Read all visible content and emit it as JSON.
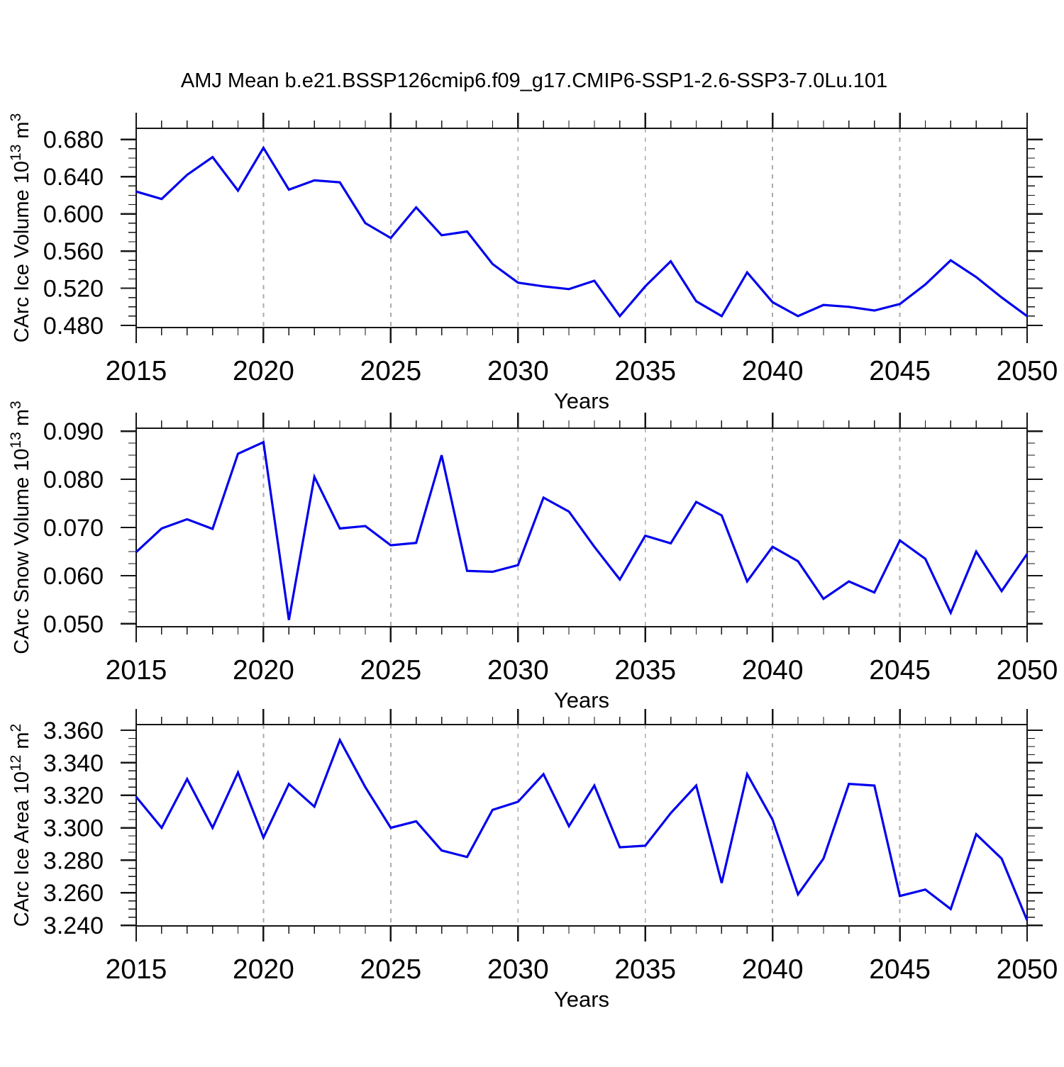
{
  "title": "AMJ Mean b.e21.BSSP126cmip6.f09_g17.CMIP6-SSP1-2.6-SSP3-7.0Lu.101",
  "colors": {
    "line": "#0000ee",
    "gridline": "#ababab",
    "axis": "#161616",
    "text": "#000000",
    "background": "#ffffff"
  },
  "chart_data": {
    "type": "line",
    "x": [
      2015,
      2016,
      2017,
      2018,
      2019,
      2020,
      2021,
      2022,
      2023,
      2024,
      2025,
      2026,
      2027,
      2028,
      2029,
      2030,
      2031,
      2032,
      2033,
      2034,
      2035,
      2036,
      2037,
      2038,
      2039,
      2040,
      2041,
      2042,
      2043,
      2044,
      2045,
      2046,
      2047,
      2048,
      2049,
      2050
    ],
    "xticks": [
      2015,
      2020,
      2025,
      2030,
      2035,
      2040,
      2045,
      2050
    ],
    "xtick_labels": [
      "2015",
      "2020",
      "2025",
      "2030",
      "2035",
      "2040",
      "2045",
      "2050"
    ],
    "xtick_minor_step": 1,
    "grid_x": [
      2020,
      2025,
      2030,
      2035,
      2040,
      2045
    ],
    "grid_style": "dashed-vertical",
    "legend": null,
    "panels": [
      {
        "name": "carc-ice-volume",
        "ylabel": "CArc Ice Volume 10^{13} m^{3}",
        "xlabel": "Years",
        "ylim": [
          0.4777,
          0.692
        ],
        "yticks": [
          0.48,
          0.52,
          0.56,
          0.6,
          0.64,
          0.68
        ],
        "ytick_labels": [
          "0.480",
          "0.520",
          "0.560",
          "0.600",
          "0.640",
          "0.680"
        ],
        "ytick_minor_per_major": 3,
        "values": [
          0.624,
          0.616,
          0.642,
          0.661,
          0.625,
          0.671,
          0.626,
          0.636,
          0.634,
          0.59,
          0.574,
          0.607,
          0.577,
          0.581,
          0.546,
          0.526,
          0.522,
          0.519,
          0.528,
          0.49,
          0.522,
          0.549,
          0.506,
          0.49,
          0.537,
          0.505,
          0.49,
          0.502,
          0.5,
          0.496,
          0.503,
          0.524,
          0.55,
          0.532,
          0.51,
          0.49
        ]
      },
      {
        "name": "carc-snow-volume",
        "ylabel": "CArc Snow Volume 10^{13} m^{3}",
        "xlabel": "Years",
        "ylim": [
          0.0494,
          0.0906
        ],
        "yticks": [
          0.05,
          0.06,
          0.07,
          0.08,
          0.09
        ],
        "ytick_labels": [
          "0.050",
          "0.060",
          "0.070",
          "0.080",
          "0.090"
        ],
        "ytick_minor_per_major": 3,
        "values": [
          0.0649,
          0.0698,
          0.0717,
          0.0697,
          0.0853,
          0.0877,
          0.0508,
          0.0805,
          0.0698,
          0.0703,
          0.0663,
          0.0668,
          0.085,
          0.061,
          0.0608,
          0.0622,
          0.0762,
          0.0733,
          0.066,
          0.0592,
          0.0683,
          0.0667,
          0.0753,
          0.0725,
          0.0588,
          0.066,
          0.063,
          0.0552,
          0.0588,
          0.0565,
          0.0673,
          0.0635,
          0.0523,
          0.065,
          0.0568,
          0.0645
        ]
      },
      {
        "name": "carc-ice-area",
        "ylabel": "CArc Ice Area 10^{12} m^{2}",
        "xlabel": "Years",
        "ylim": [
          3.2396,
          3.3635
        ],
        "yticks": [
          3.24,
          3.26,
          3.28,
          3.3,
          3.32,
          3.34,
          3.36
        ],
        "ytick_labels": [
          "3.240",
          "3.260",
          "3.280",
          "3.300",
          "3.320",
          "3.340",
          "3.360"
        ],
        "ytick_minor_per_major": 3,
        "values": [
          3.319,
          3.3,
          3.33,
          3.3,
          3.334,
          3.294,
          3.327,
          3.313,
          3.354,
          3.325,
          3.3,
          3.304,
          3.286,
          3.282,
          3.311,
          3.316,
          3.333,
          3.301,
          3.326,
          3.288,
          3.289,
          3.309,
          3.326,
          3.266,
          3.333,
          3.305,
          3.259,
          3.281,
          3.327,
          3.326,
          3.258,
          3.262,
          3.25,
          3.296,
          3.281,
          3.243
        ]
      }
    ]
  }
}
